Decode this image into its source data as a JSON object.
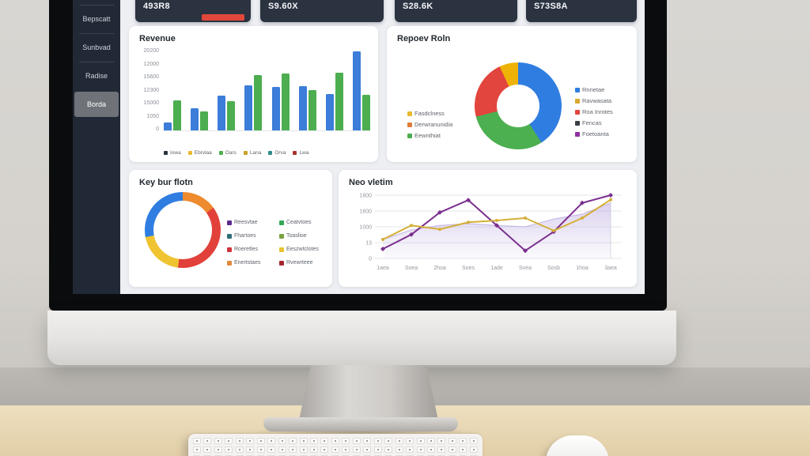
{
  "sidebar": {
    "items": [
      {
        "label": "Bepscatt"
      },
      {
        "label": "Sunbvad"
      },
      {
        "label": "Radise"
      },
      {
        "label": "Borda",
        "active": true
      }
    ]
  },
  "stat_cards": [
    {
      "value": "493R8",
      "accent_color": "#e2473c"
    },
    {
      "value": "S9.60X"
    },
    {
      "value": "S28.6K"
    },
    {
      "value": "S73S8A"
    }
  ],
  "chart_data": [
    {
      "type": "bar",
      "title": "Revenue",
      "yticks": [
        "20200",
        "12000",
        "15600",
        "12300",
        "15000",
        "1050",
        "0"
      ],
      "ylim": [
        0,
        20200
      ],
      "series": [
        {
          "name": "series-blue",
          "color": "#3b7dd8",
          "values": [
            2000,
            5700,
            8900,
            11500,
            11100,
            11300,
            9300,
            20200
          ]
        },
        {
          "name": "series-green",
          "color": "#4cae4f",
          "values": [
            7700,
            4850,
            7500,
            14100,
            14500,
            10300,
            14700,
            9100
          ]
        }
      ],
      "legend": [
        {
          "label": "Iowa",
          "color": "#2b3340"
        },
        {
          "label": "Ebrvlaa",
          "color": "#e8b931"
        },
        {
          "label": "Oars",
          "color": "#4cae4f"
        },
        {
          "label": "Lana",
          "color": "#c9a227"
        },
        {
          "label": "Orva",
          "color": "#2e8f85"
        },
        {
          "label": "Lwa",
          "color": "#a8352e"
        }
      ]
    },
    {
      "type": "donut",
      "title": "Repoev Roln",
      "slices": [
        {
          "label": "Rnnetae",
          "color": "#2f7de1",
          "value": 41
        },
        {
          "label": "Eewnthiat",
          "color": "#4cb050",
          "value": 30
        },
        {
          "label": "Roa Inrotes",
          "color": "#e2453d",
          "value": 22
        },
        {
          "label": "Ravwasata",
          "color": "#eeb306",
          "value": 7
        }
      ],
      "legend_left": [
        {
          "label": "Fasdclness",
          "color": "#e8b931"
        },
        {
          "label": "Derwranunidia",
          "color": "#e07b39"
        },
        {
          "label": "Eewnthiat",
          "color": "#4cae4f"
        }
      ],
      "legend_right": [
        {
          "label": "Rnnetae",
          "color": "#2f7de1"
        },
        {
          "label": "Ravwasata",
          "color": "#d9a92f"
        },
        {
          "label": "Roa Inrotes",
          "color": "#e2453d"
        },
        {
          "label": "Fencas",
          "color": "#3a3f46"
        },
        {
          "label": "Foetoanta",
          "color": "#8e30a0"
        }
      ]
    },
    {
      "type": "donut",
      "title": "Key bur flotn",
      "slices": [
        {
          "label": "Enertstaes",
          "color": "#ed8b2e",
          "value": 15
        },
        {
          "label": "Roeretles",
          "color": "#e2403a",
          "value": 37
        },
        {
          "label": "Eeszwtclotes",
          "color": "#f0c330",
          "value": 20
        },
        {
          "label": "Fhartoes",
          "color": "#2f7de1",
          "value": 28
        }
      ],
      "legend_cols": [
        [
          {
            "label": "Reesvtae",
            "color": "#5b2d8e"
          },
          {
            "label": "Fhartoes",
            "color": "#2e6e77"
          },
          {
            "label": "Roeretles",
            "color": "#d0343c"
          },
          {
            "label": "Enertstaes",
            "color": "#e08a3c"
          }
        ],
        [
          {
            "label": "Ceatvtoes",
            "color": "#33a852"
          },
          {
            "label": "Toaslioe",
            "color": "#7ba23f"
          },
          {
            "label": "Eeszwtclotes",
            "color": "#e8c132"
          },
          {
            "label": "Rvewrteee",
            "color": "#a8242f"
          }
        ]
      ]
    },
    {
      "type": "line",
      "title": "Neo vletim",
      "yticks": [
        "1800",
        "1600",
        "1000",
        "13",
        "0"
      ],
      "ylim": [
        0,
        1800
      ],
      "xlabels": [
        "1aea",
        "Soea",
        "2hoa",
        "Soes",
        "1ade",
        "Svea",
        "Sosb",
        "1hoa",
        "3aea"
      ],
      "area": {
        "name": "area-band",
        "color": "#b9a6e0",
        "values": [
          540,
          810,
          940,
          990,
          940,
          900,
          1120,
          1260,
          1580
        ]
      },
      "series": [
        {
          "name": "series-purple",
          "color": "#7b2f8e",
          "marker": "diamond",
          "values": [
            270,
            680,
            1310,
            1660,
            940,
            220,
            760,
            1580,
            1800
          ]
        },
        {
          "name": "series-yellow",
          "color": "#d4af37",
          "marker": "circle",
          "values": [
            540,
            940,
            830,
            1030,
            1080,
            1150,
            790,
            1150,
            1670
          ]
        }
      ]
    }
  ]
}
